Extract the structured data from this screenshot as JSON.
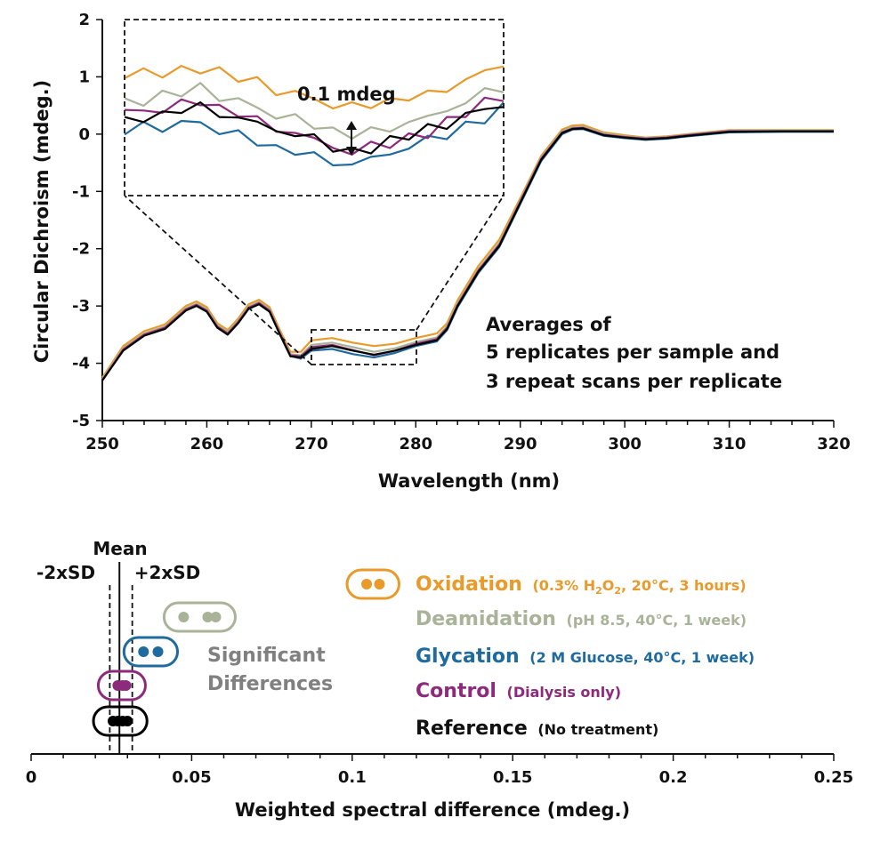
{
  "colors": {
    "oxidation": "#E89A2B",
    "deamidation": "#A8B398",
    "glycation": "#1F6A9E",
    "control": "#8E2A7B",
    "reference": "#000000",
    "significant": "#808080"
  },
  "chart_data": [
    {
      "type": "line",
      "xlabel": "Wavelength (nm)",
      "ylabel": "Circular Dichroism (mdeg.)",
      "xlim": [
        250,
        320
      ],
      "ylim": [
        -5,
        2
      ],
      "x_ticks": [
        "250",
        "260",
        "270",
        "280",
        "290",
        "300",
        "310",
        "320"
      ],
      "y_ticks": [
        "2",
        "1",
        "0",
        "-1",
        "-2",
        "-3",
        "-4",
        "-5"
      ],
      "annotation": {
        "lines": [
          "Averages of",
          "5 replicates per sample and",
          "3 repeat scans per replicate"
        ],
        "inset_label": "0.1 mdeg",
        "zoom_region": {
          "x": [
            270,
            280
          ],
          "y": [
            -4.0,
            -3.4
          ]
        }
      },
      "x": [
        250,
        252,
        254,
        256,
        258,
        259,
        260,
        261,
        262,
        263,
        264,
        265,
        266,
        267,
        268,
        269,
        270,
        272,
        274,
        276,
        278,
        280,
        282,
        283,
        284,
        286,
        288,
        290,
        292,
        294,
        295,
        296,
        298,
        300,
        302,
        304,
        306,
        310,
        315,
        320
      ],
      "series": [
        {
          "key": "reference",
          "values": [
            -4.3,
            -3.78,
            -3.52,
            -3.4,
            -3.08,
            -3.0,
            -3.1,
            -3.38,
            -3.5,
            -3.3,
            -3.05,
            -2.97,
            -3.1,
            -3.5,
            -3.88,
            -3.9,
            -3.75,
            -3.7,
            -3.78,
            -3.85,
            -3.78,
            -3.68,
            -3.6,
            -3.4,
            -3.0,
            -2.4,
            -1.95,
            -1.2,
            -0.45,
            0.02,
            0.09,
            0.1,
            -0.02,
            -0.06,
            -0.09,
            -0.07,
            -0.03,
            0.04,
            0.05,
            0.05
          ]
        },
        {
          "key": "control",
          "values": [
            -4.3,
            -3.76,
            -3.5,
            -3.38,
            -3.06,
            -2.98,
            -3.08,
            -3.36,
            -3.48,
            -3.28,
            -3.03,
            -2.95,
            -3.08,
            -3.48,
            -3.86,
            -3.88,
            -3.72,
            -3.68,
            -3.77,
            -3.86,
            -3.78,
            -3.66,
            -3.58,
            -3.38,
            -2.98,
            -2.38,
            -1.93,
            -1.18,
            -0.43,
            0.03,
            0.1,
            0.11,
            -0.01,
            -0.05,
            -0.08,
            -0.06,
            -0.02,
            0.05,
            0.05,
            0.05
          ]
        },
        {
          "key": "glycation",
          "values": [
            -4.3,
            -3.77,
            -3.51,
            -3.39,
            -3.07,
            -2.99,
            -3.09,
            -3.37,
            -3.49,
            -3.29,
            -3.04,
            -2.96,
            -3.09,
            -3.49,
            -3.87,
            -3.92,
            -3.78,
            -3.75,
            -3.84,
            -3.9,
            -3.82,
            -3.7,
            -3.62,
            -3.42,
            -3.02,
            -2.42,
            -1.97,
            -1.22,
            -0.47,
            0.0,
            0.08,
            0.09,
            -0.03,
            -0.07,
            -0.1,
            -0.08,
            -0.04,
            0.03,
            0.04,
            0.04
          ]
        },
        {
          "key": "deamidation",
          "values": [
            -4.28,
            -3.74,
            -3.48,
            -3.36,
            -3.04,
            -2.96,
            -3.06,
            -3.34,
            -3.46,
            -3.26,
            -3.01,
            -2.93,
            -3.06,
            -3.46,
            -3.84,
            -3.86,
            -3.68,
            -3.64,
            -3.72,
            -3.8,
            -3.74,
            -3.63,
            -3.55,
            -3.35,
            -2.95,
            -2.36,
            -1.9,
            -1.16,
            -0.41,
            0.05,
            0.12,
            0.13,
            0.01,
            -0.04,
            -0.07,
            -0.05,
            -0.01,
            0.06,
            0.06,
            0.06
          ]
        },
        {
          "key": "oxidation",
          "values": [
            -4.25,
            -3.7,
            -3.44,
            -3.32,
            -3.0,
            -2.92,
            -3.02,
            -3.3,
            -3.42,
            -3.22,
            -2.97,
            -2.89,
            -3.02,
            -3.42,
            -3.8,
            -3.8,
            -3.6,
            -3.56,
            -3.64,
            -3.7,
            -3.66,
            -3.56,
            -3.48,
            -3.3,
            -2.9,
            -2.3,
            -1.84,
            -1.12,
            -0.38,
            0.08,
            0.15,
            0.16,
            0.03,
            -0.02,
            -0.06,
            -0.04,
            0.0,
            0.07,
            0.07,
            0.07
          ]
        }
      ]
    },
    {
      "type": "scatter",
      "xlabel": "Weighted spectral difference (mdeg.)",
      "xlim": [
        0,
        0.25
      ],
      "x_ticks": [
        "0",
        "0.05",
        "0.1",
        "0.15",
        "0.2",
        "0.25"
      ],
      "mean": 0.0275,
      "minus_2sd": 0.0245,
      "plus_2sd": 0.0315,
      "labels": {
        "mean": "Mean",
        "minus": "-2xSD",
        "plus": "+2xSD",
        "significant": [
          "Significant",
          "Differences"
        ]
      },
      "groups": [
        {
          "key": "oxidation",
          "name": "Oxidation",
          "detail_pre": "(0.3% H",
          "detail_sub1": "2",
          "detail_mid": "O",
          "detail_sub2": "2",
          "detail_post": ", 20°C, 3 hours)",
          "x_values": [
            0.1045,
            0.1085
          ]
        },
        {
          "key": "deamidation",
          "name": "Deamidation",
          "detail": "(pH 8.5, 40°C, 1 week)",
          "x_values": [
            0.0475,
            0.055,
            0.0575
          ]
        },
        {
          "key": "glycation",
          "name": "Glycation",
          "detail": "(2 M Glucose, 40°C, 1 week)",
          "x_values": [
            0.035,
            0.0395
          ]
        },
        {
          "key": "control",
          "name": "Control",
          "detail": "(Dialysis only)",
          "x_values": [
            0.027,
            0.0285,
            0.0295
          ]
        },
        {
          "key": "reference",
          "name": "Reference",
          "detail": "(No treatment)",
          "x_values": [
            0.0255,
            0.027,
            0.0285,
            0.03
          ]
        }
      ]
    }
  ]
}
